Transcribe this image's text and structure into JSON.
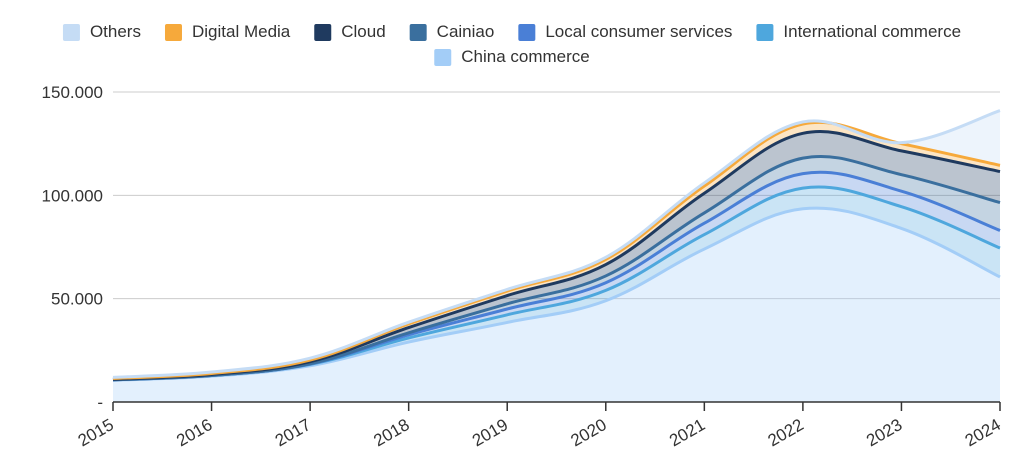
{
  "chart_data": {
    "type": "area",
    "stacked": true,
    "title": "",
    "xlabel": "",
    "ylabel": "",
    "x": [
      "2015",
      "2016",
      "2017",
      "2018",
      "2019",
      "2020",
      "2021",
      "2022",
      "2023",
      "2024"
    ],
    "ylim": [
      0,
      150000
    ],
    "y_ticks": [
      {
        "value": 0,
        "label": "-"
      },
      {
        "value": 50000,
        "label": "50.000"
      },
      {
        "value": 100000,
        "label": "100.000"
      },
      {
        "value": 150000,
        "label": "150.000"
      }
    ],
    "grid": true,
    "legend_position": "top",
    "series": [
      {
        "name": "China commerce",
        "color": "#a3cdf7",
        "values": [
          10500,
          12500,
          17500,
          29000,
          38500,
          49000,
          74000,
          93500,
          84000,
          60500
        ]
      },
      {
        "name": "International commerce",
        "color": "#4ea7dd",
        "values": [
          200,
          300,
          700,
          2000,
          3700,
          5000,
          7000,
          10000,
          10500,
          14000
        ]
      },
      {
        "name": "Local consumer services",
        "color": "#4a7fd6",
        "values": [
          0,
          0,
          200,
          1500,
          2800,
          3700,
          5500,
          7000,
          7500,
          8500
        ]
      },
      {
        "name": "Cainiao",
        "color": "#3a6f9e",
        "values": [
          0,
          0,
          100,
          1000,
          2500,
          3300,
          5000,
          7500,
          8000,
          13500
        ]
      },
      {
        "name": "Cloud",
        "color": "#1f3a5f",
        "values": [
          300,
          500,
          1000,
          2500,
          4000,
          5500,
          9500,
          12000,
          11500,
          15000
        ]
      },
      {
        "name": "Digital Media",
        "color": "#f6a93b",
        "values": [
          400,
          500,
          800,
          1800,
          2200,
          2500,
          3500,
          4500,
          3500,
          3000
        ]
      },
      {
        "name": "Others",
        "color": "#c5dcf5",
        "values": [
          500,
          700,
          900,
          800,
          800,
          1000,
          1500,
          1000,
          500,
          26500
        ]
      }
    ],
    "legend_order": [
      "Others",
      "Digital Media",
      "Cloud",
      "Cainiao",
      "Local consumer services",
      "International commerce",
      "China commerce"
    ]
  }
}
